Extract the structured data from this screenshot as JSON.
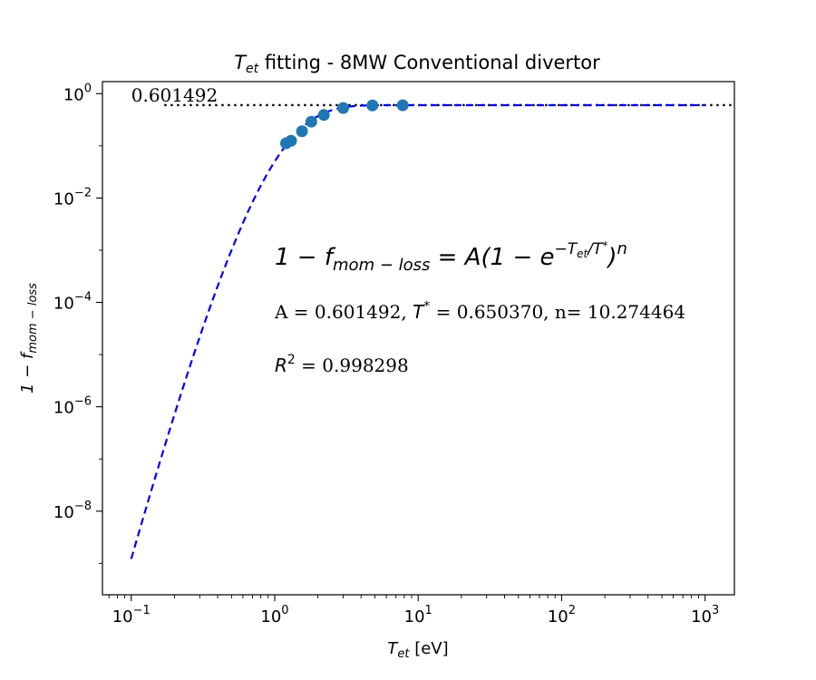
{
  "chart_data": {
    "type": "scatter",
    "title_var": "T",
    "title_sub": "et",
    "title_rest": " fitting - 8MW Conventional divertor",
    "xlabel_var": "T",
    "xlabel_sub": "et",
    "xlabel_unit": " [eV]",
    "ylabel": "1 − f",
    "ylabel_sub": "mom − loss",
    "x_scale": "log",
    "y_scale": "log",
    "xlim": [
      0.063,
      1600
    ],
    "ylim": [
      2.5e-10,
      1.7
    ],
    "x_ticks": [
      {
        "value": 0.1,
        "base": "10",
        "exp": "−1"
      },
      {
        "value": 1,
        "base": "10",
        "exp": "0"
      },
      {
        "value": 10,
        "base": "10",
        "exp": "1"
      },
      {
        "value": 100,
        "base": "10",
        "exp": "2"
      },
      {
        "value": 1000,
        "base": "10",
        "exp": "3"
      }
    ],
    "y_ticks": [
      {
        "value": 1,
        "base": "10",
        "exp": "0"
      },
      {
        "value": 0.01,
        "base": "10",
        "exp": "−2"
      },
      {
        "value": 0.0001,
        "base": "10",
        "exp": "−4"
      },
      {
        "value": 1e-06,
        "base": "10",
        "exp": "−6"
      },
      {
        "value": 1e-08,
        "base": "10",
        "exp": "−8"
      }
    ],
    "scatter_points": {
      "x": [
        1.2,
        1.3,
        1.55,
        1.8,
        2.2,
        3.0,
        4.8,
        7.8
      ],
      "y": [
        0.112,
        0.125,
        0.19,
        0.29,
        0.39,
        0.53,
        0.595,
        0.598
      ]
    },
    "fit": {
      "A": 0.601492,
      "T_star": 0.65037,
      "n": 10.274464,
      "x_range": [
        0.1,
        1000
      ],
      "color": "#0000ee",
      "style": "dashed"
    },
    "asymptote": {
      "value": 0.601492,
      "label": "0.601492",
      "x_start": 0.17,
      "x_end": 1600,
      "style": "dotted"
    },
    "annotations": {
      "eq_left": "1 − f",
      "eq_left_sub": "mom − loss",
      "eq_mid": " = A(1 − e",
      "eq_exp": "−T",
      "eq_exp_sub": "et",
      "eq_exp_tail": "/T",
      "eq_exp_star": "*",
      "eq_right": ")",
      "eq_power": "n",
      "params_a": "A = 0.601492, ",
      "params_t": "T",
      "params_t_star": "*",
      "params_rest": " =  0.650370, n= 10.274464",
      "r2_var": "R",
      "r2_exp": "2",
      "r2_rest": " = 0.998298"
    },
    "colors": {
      "points": "#1f77b4",
      "fit": "#0000ee",
      "asymptote": "#000000",
      "axes": "#000000"
    },
    "grid": false
  }
}
